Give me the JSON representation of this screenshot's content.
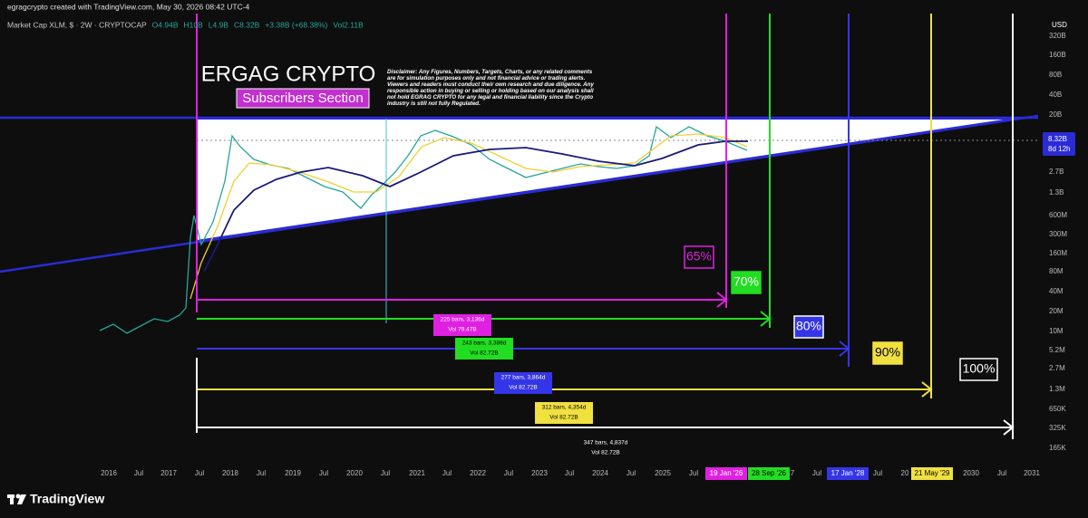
{
  "header": {
    "byline": "egragcrypto created with TradingView.com, May 30, 2026 08:42 UTC-4"
  },
  "legend": {
    "symbol": "Market Cap XLM, $ · 2W · CRYPTOCAP",
    "values": [
      "O4.94B",
      "H10B",
      "L4.9B",
      "C8.32B",
      "+3.38B (+68.38%)",
      "Vol2.11B"
    ]
  },
  "overlay": {
    "title": "ERGAG CRYPTO",
    "subtitle": "Subscribers Section",
    "disclaimer": "Disclaimer: Any Figures, Numbers, Targets, Charts, or any related comments are for simulation purposes only and not financial advice or trading alerts. Viewers and readers must conduct their own research and due diligence. Any responsible action in buying or selling or holding based on our analysis shall not hold EGRAG CRYPTO for any legal and financial liability since the Crypto industry is still not fully Regulated."
  },
  "price_axis": {
    "currency": "USD",
    "labels": [
      "320B",
      "160B",
      "80B",
      "40B",
      "20B",
      "2.7B",
      "1.3B",
      "600M",
      "300M",
      "160M",
      "80M",
      "40M",
      "20M",
      "10M",
      "5.2M",
      "2.7M",
      "1.3M",
      "650K",
      "325K",
      "165K"
    ],
    "last_price": "8.32B",
    "countdown": "8d 12h"
  },
  "time_axis": {
    "labels": [
      "2016",
      "Jul",
      "2017",
      "Jul",
      "2018",
      "Jul",
      "2019",
      "Jul",
      "2020",
      "Jul",
      "2021",
      "Jul",
      "2022",
      "Jul",
      "2023",
      "Jul",
      "2024",
      "Jul",
      "2025",
      "Jul",
      "19 Jan '26",
      "28 Sep '26",
      "7",
      "Jul",
      "17 Jan '28",
      "Jul",
      "20",
      "21 May '29",
      "2030",
      "Jul",
      "2031"
    ]
  },
  "targets": [
    "65%",
    "70%",
    "80%",
    "90%",
    "100%"
  ],
  "measurements": [
    {
      "bars": "225 bars, 3,136d",
      "volume": "Vol 79.47B"
    },
    {
      "bars": "243 bars, 3,388d",
      "volume": "Vol 82.72B"
    },
    {
      "bars": "277 bars, 3,864d",
      "volume": "Vol 82.72B"
    },
    {
      "bars": "312 bars, 4,354d",
      "volume": "Vol 82.72B"
    },
    {
      "bars": "347 bars, 4,837d",
      "volume": "Vol 82.72B"
    }
  ],
  "footer": {
    "brand": "TradingView"
  }
}
